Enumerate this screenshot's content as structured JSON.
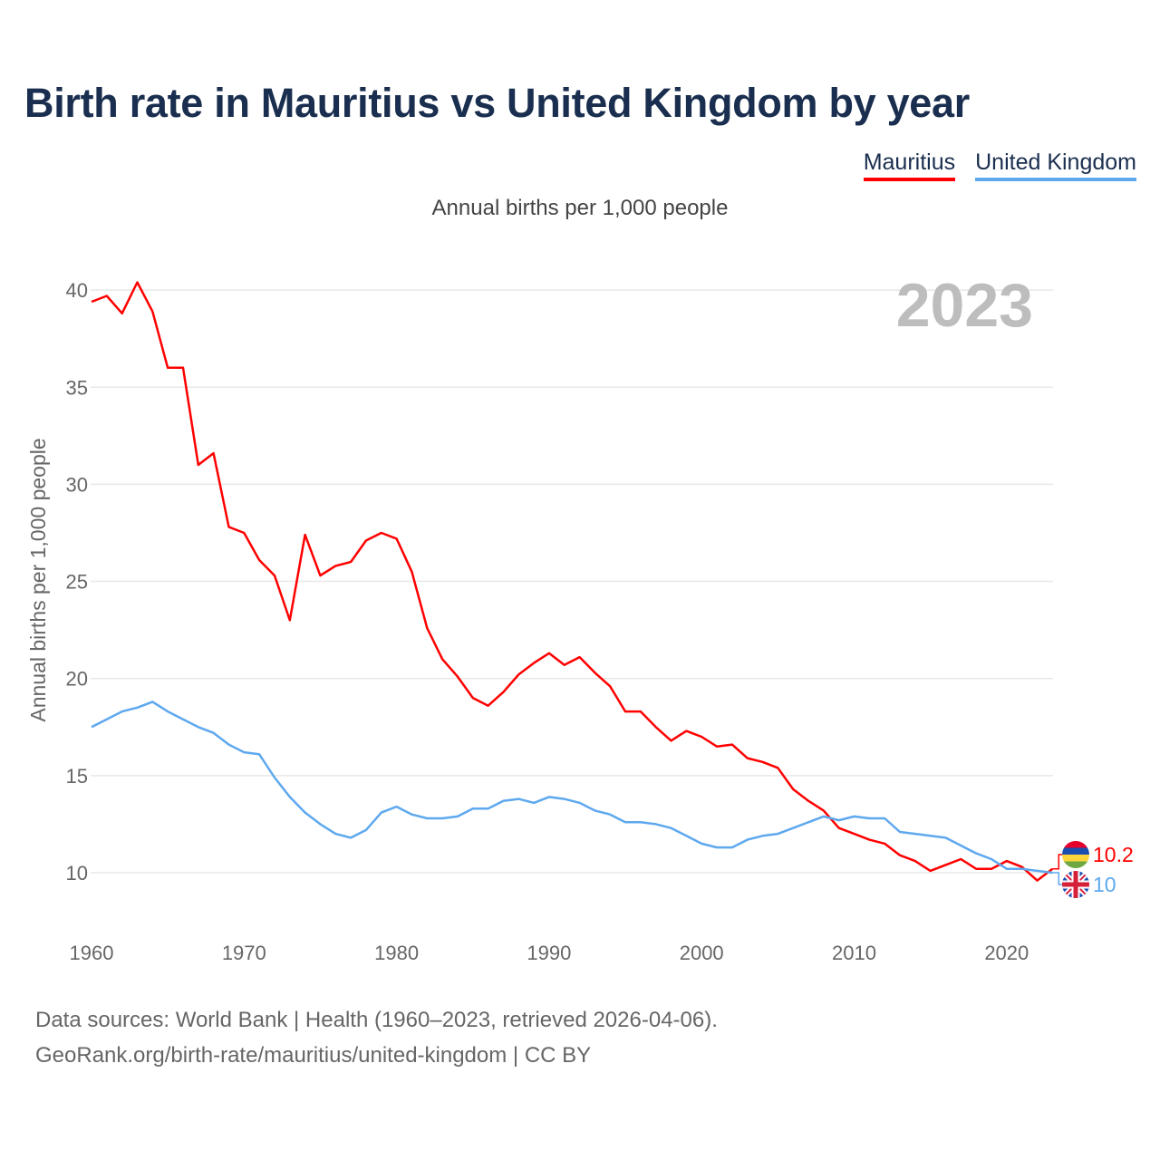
{
  "title": "Birth rate in Mauritius vs United Kingdom by year",
  "subtitle": "Annual births per 1,000 people",
  "year_label": "2023",
  "source_line1": "Data sources: World Bank | Health (1960–2023, retrieved 2026-04-06).",
  "source_line2": "GeoRank.org/birth-rate/mauritius/united-kingdom | CC BY",
  "chart_data": {
    "type": "line",
    "title": "Birth rate in Mauritius vs United Kingdom by year",
    "xlabel": "",
    "ylabel": "Annual births per 1,000 people",
    "xlim": [
      1960,
      2023
    ],
    "ylim": [
      8,
      42
    ],
    "yticks": [
      10,
      15,
      20,
      25,
      30,
      35,
      40
    ],
    "xticks": [
      1960,
      1970,
      1980,
      1990,
      2000,
      2010,
      2020
    ],
    "grid": true,
    "legend_position": "top-right",
    "x": [
      1960,
      1961,
      1962,
      1963,
      1964,
      1965,
      1966,
      1967,
      1968,
      1969,
      1970,
      1971,
      1972,
      1973,
      1974,
      1975,
      1976,
      1977,
      1978,
      1979,
      1980,
      1981,
      1982,
      1983,
      1984,
      1985,
      1986,
      1987,
      1988,
      1989,
      1990,
      1991,
      1992,
      1993,
      1994,
      1995,
      1996,
      1997,
      1998,
      1999,
      2000,
      2001,
      2002,
      2003,
      2004,
      2005,
      2006,
      2007,
      2008,
      2009,
      2010,
      2011,
      2012,
      2013,
      2014,
      2015,
      2016,
      2017,
      2018,
      2019,
      2020,
      2021,
      2022,
      2023
    ],
    "series": [
      {
        "name": "Mauritius",
        "color": "#ff0000",
        "end_label": "10.2",
        "flag": "mauritius-flag",
        "values": [
          39.4,
          39.7,
          38.8,
          40.4,
          38.9,
          36.0,
          36.0,
          31.0,
          31.6,
          27.8,
          27.5,
          26.1,
          25.3,
          23.0,
          27.4,
          25.3,
          25.8,
          26.0,
          27.1,
          27.5,
          27.2,
          25.5,
          22.6,
          21.0,
          20.1,
          19.0,
          18.6,
          19.3,
          20.2,
          20.8,
          21.3,
          20.7,
          21.1,
          20.3,
          19.6,
          18.3,
          18.3,
          17.5,
          16.8,
          17.3,
          17.0,
          16.5,
          16.6,
          15.9,
          15.7,
          15.4,
          14.3,
          13.7,
          13.2,
          12.3,
          12.0,
          11.7,
          11.5,
          10.9,
          10.6,
          10.1,
          10.4,
          10.7,
          10.2,
          10.2,
          10.6,
          10.3,
          9.6,
          10.2
        ]
      },
      {
        "name": "United Kingdom",
        "color": "#5ea8ee",
        "end_label": "10",
        "flag": "uk-flag",
        "values": [
          17.5,
          17.9,
          18.3,
          18.5,
          18.8,
          18.3,
          17.9,
          17.5,
          17.2,
          16.6,
          16.2,
          16.1,
          14.9,
          13.9,
          13.1,
          12.5,
          12.0,
          11.8,
          12.2,
          13.1,
          13.4,
          13.0,
          12.8,
          12.8,
          12.9,
          13.3,
          13.3,
          13.7,
          13.8,
          13.6,
          13.9,
          13.8,
          13.6,
          13.2,
          13.0,
          12.6,
          12.6,
          12.5,
          12.3,
          11.9,
          11.5,
          11.3,
          11.3,
          11.7,
          11.9,
          12.0,
          12.3,
          12.6,
          12.9,
          12.7,
          12.9,
          12.8,
          12.8,
          12.1,
          12.0,
          11.9,
          11.8,
          11.4,
          11.0,
          10.7,
          10.2,
          10.2,
          10.1,
          10.0
        ]
      }
    ]
  }
}
